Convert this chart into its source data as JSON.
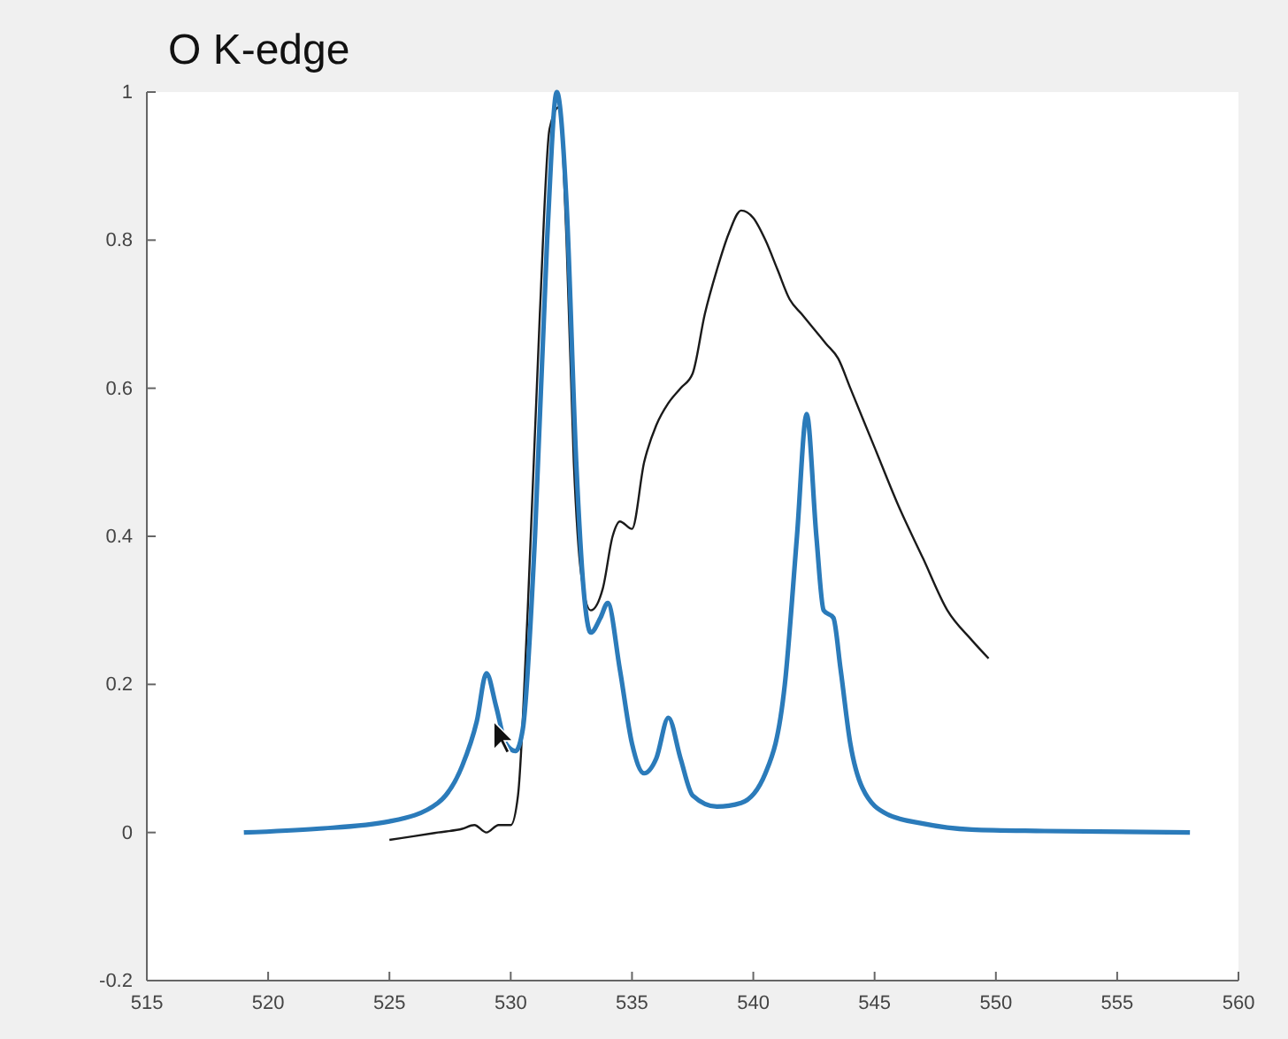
{
  "chart_data": {
    "type": "line",
    "title": "O K-edge",
    "xlim": [
      515,
      560
    ],
    "xticks": [
      515,
      520,
      525,
      530,
      535,
      540,
      545,
      550,
      555,
      560
    ],
    "ylim": [
      -0.2,
      1
    ],
    "yticks": [
      -0.2,
      0,
      0.2,
      0.4,
      0.6,
      0.8,
      1
    ],
    "grid": false,
    "marker": "none",
    "line_style": "solid",
    "series": [
      {
        "color": "#1a1a1a",
        "x": [
          525,
          526,
          527,
          528,
          528.5,
          529,
          529.5,
          530,
          530.3,
          530.7,
          531.2,
          531.6,
          532,
          532.3,
          532.6,
          532.9,
          533.3,
          533.8,
          534.2,
          534.5,
          535,
          535.5,
          536,
          536.5,
          537,
          537.5,
          538,
          538.5,
          539,
          539.5,
          540,
          540.5,
          541,
          541.5,
          542,
          542.5,
          543,
          543.5,
          544,
          545,
          546,
          547,
          548,
          549,
          549.7
        ],
        "values": [
          -0.01,
          -0.005,
          0,
          0.005,
          0.01,
          0,
          0.01,
          0.01,
          0.05,
          0.3,
          0.7,
          0.95,
          0.98,
          0.8,
          0.5,
          0.35,
          0.3,
          0.33,
          0.4,
          0.42,
          0.41,
          0.5,
          0.55,
          0.58,
          0.6,
          0.62,
          0.7,
          0.76,
          0.81,
          0.84,
          0.83,
          0.8,
          0.76,
          0.72,
          0.7,
          0.68,
          0.66,
          0.64,
          0.6,
          0.52,
          0.44,
          0.37,
          0.3,
          0.26,
          0.235
        ]
      },
      {
        "color": "#2b7bba",
        "x": [
          519,
          522,
          525,
          527,
          528,
          528.6,
          529,
          529.4,
          529.8,
          530.2,
          530.5,
          531,
          531.5,
          531.9,
          532.3,
          532.7,
          533,
          533.3,
          533.7,
          534,
          534.5,
          535,
          535.5,
          536,
          536.5,
          537,
          537.5,
          538.5,
          539.5,
          540.5,
          541.3,
          541.8,
          542.2,
          542.6,
          542.9,
          543.3,
          543.6,
          544,
          544.5,
          545.5,
          547,
          549,
          552,
          558
        ],
        "values": [
          0,
          0.005,
          0.015,
          0.04,
          0.09,
          0.15,
          0.215,
          0.17,
          0.12,
          0.11,
          0.14,
          0.4,
          0.8,
          1.0,
          0.85,
          0.5,
          0.33,
          0.27,
          0.29,
          0.31,
          0.22,
          0.12,
          0.08,
          0.1,
          0.155,
          0.1,
          0.05,
          0.035,
          0.04,
          0.08,
          0.2,
          0.4,
          0.565,
          0.4,
          0.3,
          0.29,
          0.22,
          0.12,
          0.06,
          0.025,
          0.012,
          0.004,
          0.002,
          0
        ]
      }
    ]
  }
}
